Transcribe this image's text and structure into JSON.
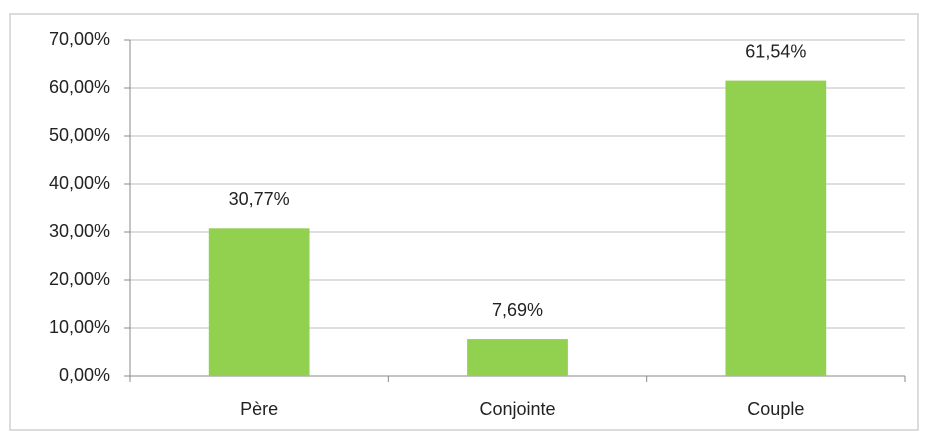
{
  "chart_data": {
    "type": "bar",
    "categories": [
      "Père",
      "Conjointe",
      "Couple"
    ],
    "values": [
      30.77,
      7.69,
      61.54
    ],
    "value_labels": [
      "30,77%",
      "7,69%",
      "61,54%"
    ],
    "color": "#92d050",
    "ylim": [
      0,
      70
    ],
    "yticks": [
      {
        "value": 0,
        "label": "0,00%"
      },
      {
        "value": 10,
        "label": "10,00%"
      },
      {
        "value": 20,
        "label": "20,00%"
      },
      {
        "value": 30,
        "label": "30,00%"
      },
      {
        "value": 40,
        "label": "40,00%"
      },
      {
        "value": 50,
        "label": "50,00%"
      },
      {
        "value": 60,
        "label": "60,00%"
      },
      {
        "value": 70,
        "label": "70,00%"
      }
    ],
    "grid": true
  }
}
